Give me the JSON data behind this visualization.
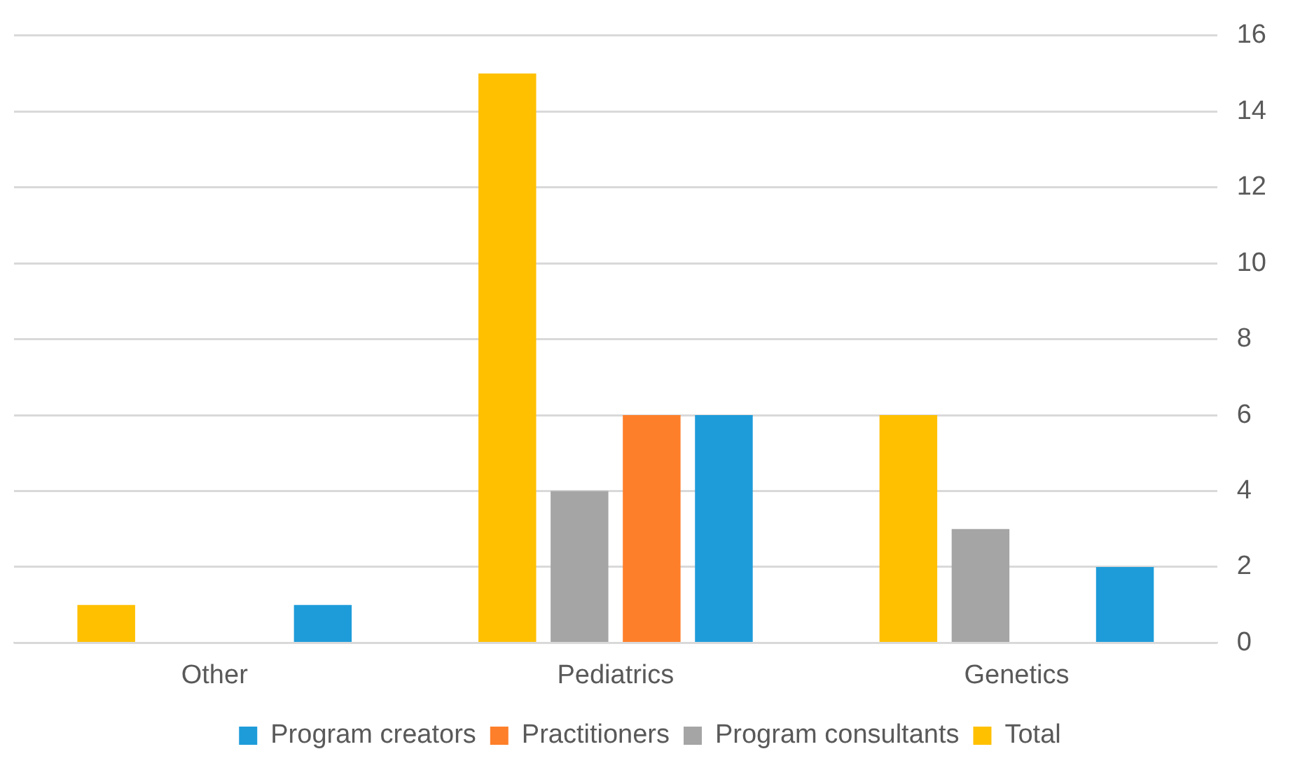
{
  "chart_data": {
    "type": "bar",
    "categories": [
      "Other",
      "Pediatrics",
      "Genetics"
    ],
    "series": [
      {
        "name": "Total",
        "color": "#ffc000",
        "values": [
          1,
          15,
          6
        ]
      },
      {
        "name": "Program consultants",
        "color": "#a5a5a5",
        "values": [
          0,
          4,
          3
        ]
      },
      {
        "name": "Practitioners",
        "color": "#fe7f2a",
        "values": [
          0,
          6,
          0
        ]
      },
      {
        "name": "Program creators",
        "color": "#1e9cd9",
        "values": [
          1,
          6,
          2
        ]
      }
    ],
    "ylim": [
      0,
      16
    ],
    "yticks": [
      0,
      2,
      4,
      6,
      8,
      10,
      12,
      14,
      16
    ],
    "grid": "y",
    "legend": "bottom"
  }
}
